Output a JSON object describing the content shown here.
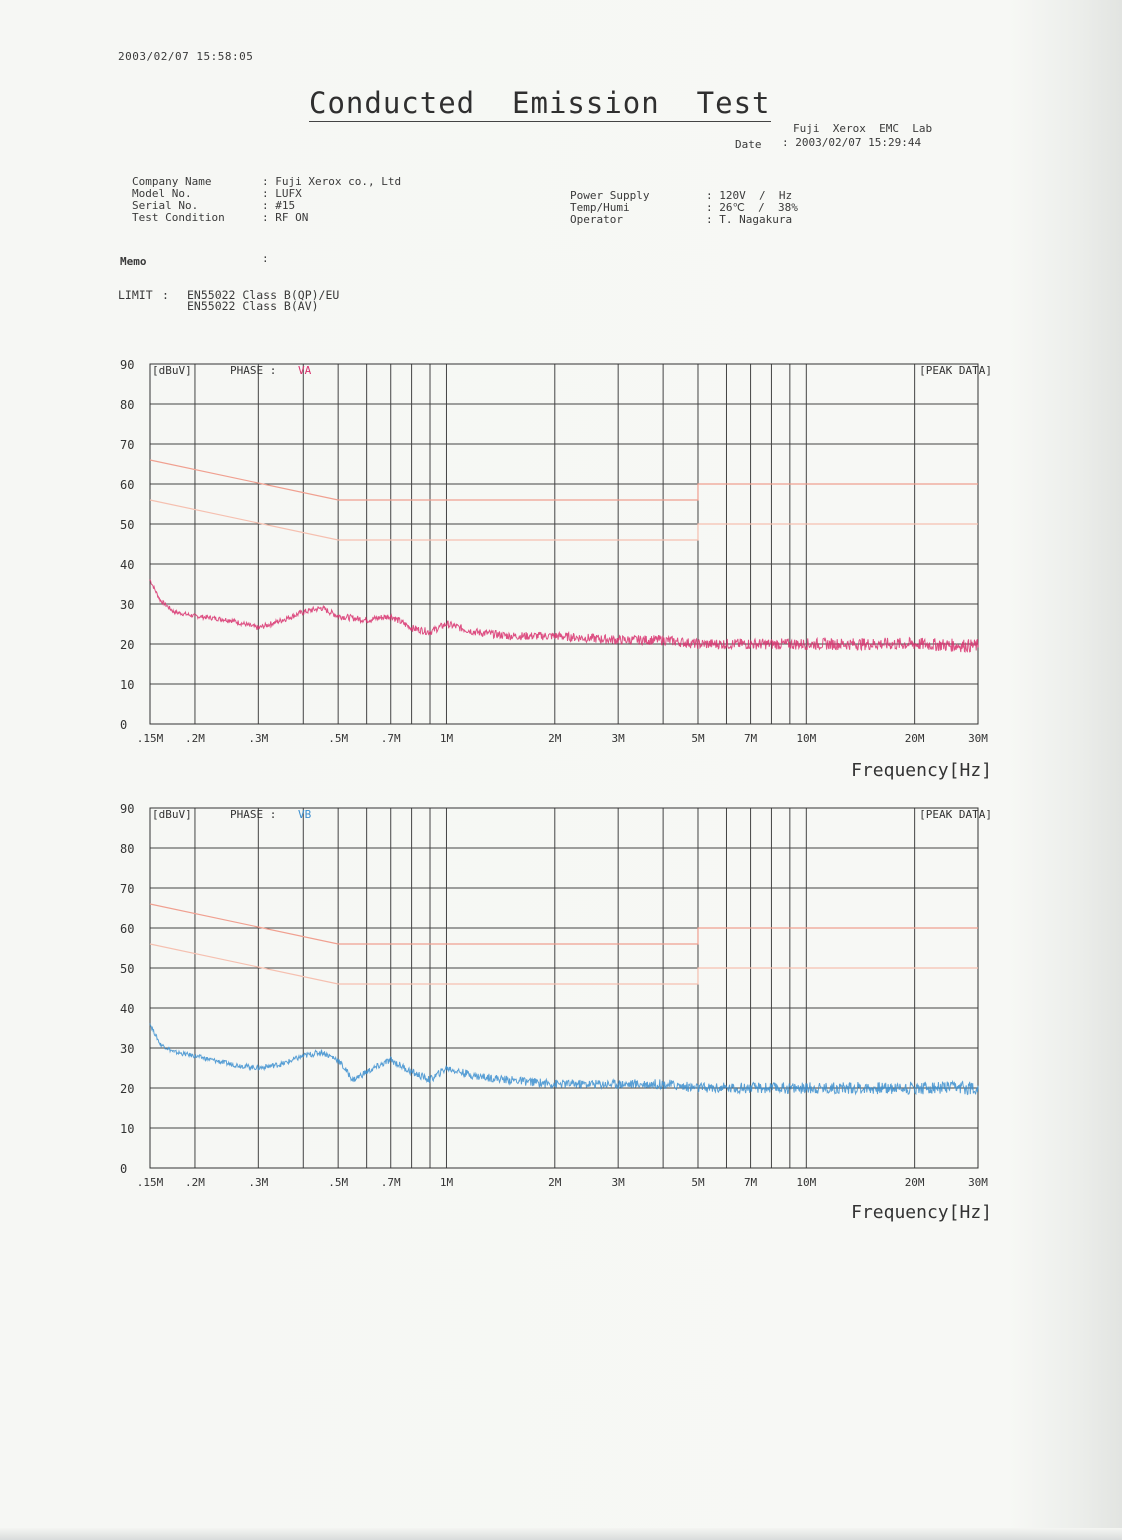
{
  "header": {
    "print_timestamp": "2003/02/07 15:58:05",
    "title": "Conducted  Emission  Test",
    "lab": "Fuji  Xerox  EMC  Lab",
    "date_label": "Date",
    "date_value": ": 2003/02/07 15:29:44"
  },
  "info_left": [
    {
      "label": "Company Name",
      "value": ": Fuji Xerox co., Ltd"
    },
    {
      "label": "Model No.",
      "value": ": LUFX"
    },
    {
      "label": "Serial No.",
      "value": ": #15"
    },
    {
      "label": "Test Condition",
      "value": ": RF ON"
    }
  ],
  "info_right": [
    {
      "label": "Power Supply",
      "value": ": 120V  /  Hz"
    },
    {
      "label": "Temp/Humi",
      "value": ": 26℃  /  38%"
    },
    {
      "label": "Operator",
      "value": ": T. Nagakura"
    }
  ],
  "memo": {
    "label": "Memo",
    "value": ":"
  },
  "limit": {
    "label": "LIMIT",
    "sep": ":",
    "line1": "EN55022 Class B(QP)/EU",
    "line2": "EN55022 Class B(AV)"
  },
  "chart_data": [
    {
      "type": "line",
      "y_unit_label": "[dBuV]",
      "phase_label": "PHASE :",
      "phase_value": "VA",
      "mode_label": "[PEAK DATA]",
      "xlabel": "Frequency[Hz]",
      "x_scale": "log",
      "xlim_hz": [
        150000,
        30000000
      ],
      "ylim": [
        0,
        90
      ],
      "y_ticks": [
        0,
        10,
        20,
        30,
        40,
        50,
        60,
        70,
        80,
        90
      ],
      "x_tick_labels": [
        ".15M",
        ".2M",
        ".3M",
        ".5M",
        ".7M",
        "1M",
        "2M",
        "3M",
        "5M",
        "7M",
        "10M",
        "20M",
        "30M"
      ],
      "grid": true,
      "limit_qp": {
        "x_hz": [
          150000,
          500000,
          500000,
          5000000,
          5000000,
          30000000
        ],
        "y": [
          66,
          56,
          56,
          56,
          60,
          60
        ],
        "color": "#f0a090"
      },
      "limit_av": {
        "x_hz": [
          150000,
          500000,
          500000,
          5000000,
          5000000,
          30000000
        ],
        "y": [
          56,
          46,
          46,
          46,
          50,
          50
        ],
        "color": "#f5c0b0"
      },
      "series": [
        {
          "name": "VA",
          "color": "#d8336e",
          "x_hz": [
            150000,
            160000,
            175000,
            200000,
            250000,
            300000,
            350000,
            400000,
            450000,
            500000,
            600000,
            700000,
            800000,
            900000,
            1000000,
            1200000,
            1500000,
            2000000,
            3000000,
            4000000,
            5000000,
            7000000,
            10000000,
            15000000,
            20000000,
            30000000
          ],
          "y": [
            36,
            31,
            28,
            27,
            26,
            24,
            26,
            28,
            29,
            27,
            26,
            27,
            24,
            23,
            25,
            23,
            22,
            22,
            21,
            21,
            20,
            20,
            20,
            20,
            20,
            19.5
          ]
        }
      ]
    },
    {
      "type": "line",
      "y_unit_label": "[dBuV]",
      "phase_label": "PHASE :",
      "phase_value": "VB",
      "mode_label": "[PEAK DATA]",
      "xlabel": "Frequency[Hz]",
      "x_scale": "log",
      "xlim_hz": [
        150000,
        30000000
      ],
      "ylim": [
        0,
        90
      ],
      "y_ticks": [
        0,
        10,
        20,
        30,
        40,
        50,
        60,
        70,
        80,
        90
      ],
      "x_tick_labels": [
        ".15M",
        ".2M",
        ".3M",
        ".5M",
        ".7M",
        "1M",
        "2M",
        "3M",
        "5M",
        "7M",
        "10M",
        "20M",
        "30M"
      ],
      "grid": true,
      "limit_qp": {
        "x_hz": [
          150000,
          500000,
          500000,
          5000000,
          5000000,
          30000000
        ],
        "y": [
          66,
          56,
          56,
          56,
          60,
          60
        ],
        "color": "#f0a090"
      },
      "limit_av": {
        "x_hz": [
          150000,
          500000,
          500000,
          5000000,
          5000000,
          30000000
        ],
        "y": [
          56,
          46,
          46,
          46,
          50,
          50
        ],
        "color": "#f5c0b0"
      },
      "series": [
        {
          "name": "VB",
          "color": "#3c8fcf",
          "x_hz": [
            150000,
            160000,
            175000,
            200000,
            250000,
            300000,
            350000,
            400000,
            450000,
            500000,
            550000,
            600000,
            700000,
            800000,
            900000,
            1000000,
            1200000,
            1500000,
            2000000,
            3000000,
            4000000,
            5000000,
            7000000,
            10000000,
            15000000,
            20000000,
            30000000
          ],
          "y": [
            36,
            31,
            29,
            28,
            26,
            25,
            26,
            28,
            29,
            27,
            22,
            24,
            27,
            24,
            22,
            25,
            23,
            22,
            21,
            21,
            21,
            20,
            20,
            20,
            20,
            20,
            20
          ]
        }
      ]
    }
  ]
}
